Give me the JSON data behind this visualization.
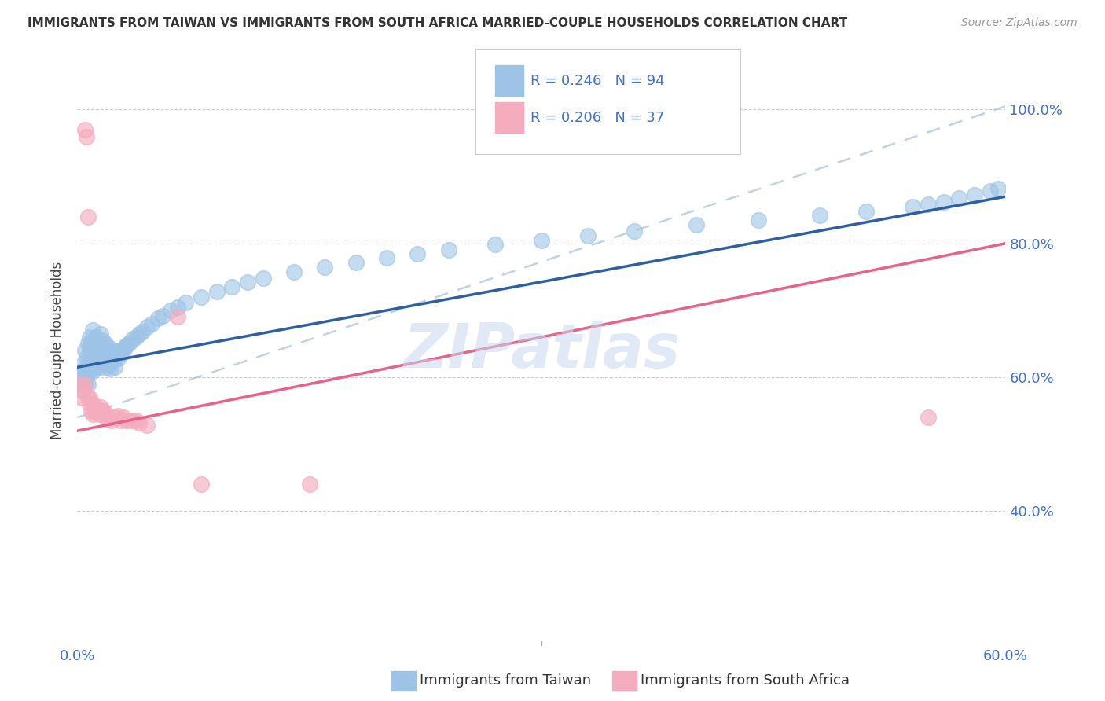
{
  "title": "IMMIGRANTS FROM TAIWAN VS IMMIGRANTS FROM SOUTH AFRICA MARRIED-COUPLE HOUSEHOLDS CORRELATION CHART",
  "source": "Source: ZipAtlas.com",
  "ylabel": "Married-couple Households",
  "xlim": [
    0.0,
    0.6
  ],
  "ylim": [
    0.2,
    1.08
  ],
  "xtick_positions": [
    0.0,
    0.1,
    0.2,
    0.3,
    0.4,
    0.5,
    0.6
  ],
  "xticklabels": [
    "0.0%",
    "",
    "",
    "",
    "",
    "",
    "60.0%"
  ],
  "ytick_positions": [
    0.4,
    0.6,
    0.8,
    1.0
  ],
  "yticklabels": [
    "40.0%",
    "60.0%",
    "80.0%",
    "100.0%"
  ],
  "tick_color": "#4472C4",
  "legend_R1": "R = 0.246",
  "legend_N1": "N = 94",
  "legend_R2": "R = 0.206",
  "legend_N2": "N = 37",
  "taiwan_color": "#9DC3E6",
  "sa_color": "#F4ACBE",
  "taiwan_line_color": "#2E5FA3",
  "sa_line_color": "#E8628A",
  "dashed_line_color": "#B0C8DC",
  "background_color": "#FFFFFF",
  "grid_color": "#CCCCCC",
  "watermark_color": "#C8D8EE",
  "taiwan_x": [
    0.002,
    0.003,
    0.003,
    0.004,
    0.004,
    0.005,
    0.005,
    0.005,
    0.006,
    0.006,
    0.007,
    0.007,
    0.007,
    0.008,
    0.008,
    0.008,
    0.009,
    0.009,
    0.01,
    0.01,
    0.01,
    0.011,
    0.011,
    0.012,
    0.012,
    0.012,
    0.013,
    0.013,
    0.014,
    0.014,
    0.015,
    0.015,
    0.015,
    0.016,
    0.016,
    0.017,
    0.017,
    0.018,
    0.018,
    0.019,
    0.019,
    0.02,
    0.02,
    0.021,
    0.021,
    0.022,
    0.023,
    0.024,
    0.024,
    0.025,
    0.026,
    0.027,
    0.028,
    0.03,
    0.031,
    0.032,
    0.034,
    0.036,
    0.038,
    0.04,
    0.042,
    0.045,
    0.048,
    0.052,
    0.055,
    0.06,
    0.065,
    0.07,
    0.08,
    0.09,
    0.1,
    0.11,
    0.12,
    0.14,
    0.16,
    0.18,
    0.2,
    0.22,
    0.24,
    0.27,
    0.3,
    0.33,
    0.36,
    0.4,
    0.44,
    0.48,
    0.51,
    0.54,
    0.55,
    0.56,
    0.57,
    0.58,
    0.59,
    0.595
  ],
  "taiwan_y": [
    0.59,
    0.61,
    0.58,
    0.62,
    0.6,
    0.64,
    0.61,
    0.59,
    0.63,
    0.6,
    0.65,
    0.62,
    0.59,
    0.66,
    0.64,
    0.61,
    0.65,
    0.62,
    0.67,
    0.64,
    0.61,
    0.655,
    0.63,
    0.66,
    0.64,
    0.615,
    0.65,
    0.625,
    0.645,
    0.62,
    0.665,
    0.64,
    0.615,
    0.655,
    0.63,
    0.645,
    0.62,
    0.65,
    0.625,
    0.64,
    0.615,
    0.645,
    0.62,
    0.638,
    0.613,
    0.63,
    0.625,
    0.64,
    0.615,
    0.632,
    0.628,
    0.64,
    0.635,
    0.64,
    0.645,
    0.648,
    0.652,
    0.658,
    0.66,
    0.665,
    0.668,
    0.675,
    0.68,
    0.688,
    0.692,
    0.7,
    0.705,
    0.712,
    0.72,
    0.728,
    0.735,
    0.742,
    0.748,
    0.758,
    0.765,
    0.772,
    0.778,
    0.785,
    0.79,
    0.798,
    0.805,
    0.812,
    0.818,
    0.828,
    0.835,
    0.842,
    0.848,
    0.855,
    0.858,
    0.862,
    0.868,
    0.872,
    0.878,
    0.882
  ],
  "sa_x": [
    0.002,
    0.003,
    0.004,
    0.005,
    0.005,
    0.006,
    0.007,
    0.007,
    0.008,
    0.008,
    0.009,
    0.01,
    0.01,
    0.011,
    0.012,
    0.013,
    0.014,
    0.015,
    0.016,
    0.017,
    0.018,
    0.019,
    0.02,
    0.022,
    0.024,
    0.026,
    0.028,
    0.03,
    0.032,
    0.035,
    0.038,
    0.04,
    0.045,
    0.065,
    0.08,
    0.15,
    0.55
  ],
  "sa_y": [
    0.59,
    0.57,
    0.58,
    0.59,
    0.97,
    0.96,
    0.57,
    0.84,
    0.57,
    0.56,
    0.55,
    0.56,
    0.545,
    0.55,
    0.555,
    0.55,
    0.545,
    0.555,
    0.548,
    0.55,
    0.545,
    0.538,
    0.54,
    0.535,
    0.54,
    0.542,
    0.535,
    0.54,
    0.535,
    0.535,
    0.535,
    0.532,
    0.528,
    0.69,
    0.44,
    0.44,
    0.54
  ],
  "taiwan_reg": [
    0.0,
    0.6,
    0.615,
    0.87
  ],
  "sa_reg": [
    0.0,
    0.6,
    0.52,
    0.8
  ],
  "dashed_reg": [
    0.0,
    0.6,
    0.54,
    1.005
  ]
}
